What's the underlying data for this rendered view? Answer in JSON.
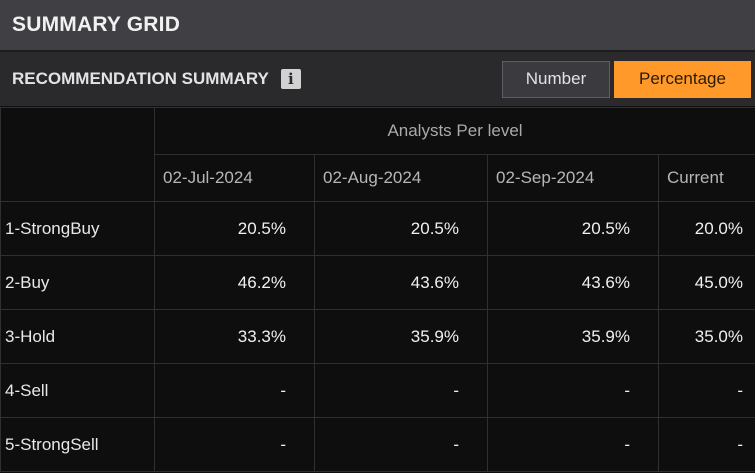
{
  "title": "SUMMARY GRID",
  "section": {
    "title": "RECOMMENDATION SUMMARY",
    "info_icon": "info-icon",
    "toggle": {
      "number_label": "Number",
      "percentage_label": "Percentage",
      "selected": "Percentage",
      "accent_color": "#ff9a2a"
    }
  },
  "table": {
    "group_header": "Analysts Per level",
    "columns": [
      "02-Jul-2024",
      "02-Aug-2024",
      "02-Sep-2024",
      "Current"
    ],
    "rows": [
      {
        "label": "1-StrongBuy",
        "values": [
          "20.5%",
          "20.5%",
          "20.5%",
          "20.0%"
        ]
      },
      {
        "label": "2-Buy",
        "values": [
          "46.2%",
          "43.6%",
          "43.6%",
          "45.0%"
        ]
      },
      {
        "label": "3-Hold",
        "values": [
          "33.3%",
          "35.9%",
          "35.9%",
          "35.0%"
        ]
      },
      {
        "label": "4-Sell",
        "values": [
          "-",
          "-",
          "-",
          "-"
        ]
      },
      {
        "label": "5-StrongSell",
        "values": [
          "-",
          "-",
          "-",
          "-"
        ]
      }
    ]
  }
}
